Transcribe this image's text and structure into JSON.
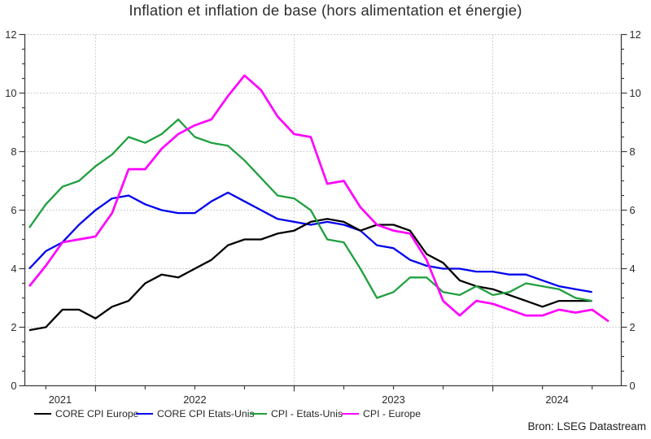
{
  "source_note": "Bron: LSEG Datastream",
  "chart_data": {
    "type": "line",
    "title": "Inflation et inflation de base (hors alimentation et énergie)",
    "legend_position": "bottom",
    "grid": {
      "style": "dotted",
      "horizontal_at": [
        2,
        4,
        6,
        8,
        10,
        12
      ],
      "vertical_at_year_boundaries": true
    },
    "y_axis": {
      "min": 0,
      "max": 12,
      "major_ticks": [
        0,
        2,
        4,
        6,
        8,
        10,
        12
      ],
      "minor_step": 0.5,
      "labels_both_sides": true
    },
    "x_axis": {
      "unit": "month",
      "months": [
        "2021-09",
        "2021-10",
        "2021-11",
        "2021-12",
        "2022-01",
        "2022-02",
        "2022-03",
        "2022-04",
        "2022-05",
        "2022-06",
        "2022-07",
        "2022-08",
        "2022-09",
        "2022-10",
        "2022-11",
        "2022-12",
        "2023-01",
        "2023-02",
        "2023-03",
        "2023-04",
        "2023-05",
        "2023-06",
        "2023-07",
        "2023-08",
        "2023-09",
        "2023-10",
        "2023-11",
        "2023-12",
        "2024-01",
        "2024-02",
        "2024-03",
        "2024-04",
        "2024-05",
        "2024-06",
        "2024-07",
        "2024-08"
      ],
      "year_labels": [
        "2021",
        "2022",
        "2023",
        "2024"
      ],
      "year_boundary_month_index": [
        4,
        16,
        28
      ],
      "quarter_tick_month_index": [
        1,
        4,
        7,
        10,
        13,
        16,
        19,
        22,
        25,
        28,
        31,
        34
      ]
    },
    "series": [
      {
        "name": "CORE CPI Europe",
        "color": "#000000",
        "values": [
          1.9,
          2.0,
          2.6,
          2.6,
          2.3,
          2.7,
          2.9,
          3.5,
          3.8,
          3.7,
          4.0,
          4.3,
          4.8,
          5.0,
          5.0,
          5.2,
          5.3,
          5.6,
          5.7,
          5.6,
          5.3,
          5.5,
          5.5,
          5.3,
          4.5,
          4.2,
          3.6,
          3.4,
          3.3,
          3.1,
          2.9,
          2.7,
          2.9,
          2.9,
          2.9
        ]
      },
      {
        "name": "CORE CPI Etats-Unis",
        "color": "#0000ee",
        "values": [
          4.0,
          4.6,
          4.9,
          5.5,
          6.0,
          6.4,
          6.5,
          6.2,
          6.0,
          5.9,
          5.9,
          6.3,
          6.6,
          6.3,
          6.0,
          5.7,
          5.6,
          5.5,
          5.6,
          5.5,
          5.3,
          4.8,
          4.7,
          4.3,
          4.1,
          4.0,
          4.0,
          3.9,
          3.9,
          3.8,
          3.8,
          3.6,
          3.4,
          3.3,
          3.2
        ]
      },
      {
        "name": "CPI - Etats-Unis",
        "color": "#1fa03f",
        "values": [
          5.4,
          6.2,
          6.8,
          7.0,
          7.5,
          7.9,
          8.5,
          8.3,
          8.6,
          9.1,
          8.5,
          8.3,
          8.2,
          7.7,
          7.1,
          6.5,
          6.4,
          6.0,
          5.0,
          4.9,
          4.0,
          3.0,
          3.2,
          3.7,
          3.7,
          3.2,
          3.1,
          3.4,
          3.1,
          3.2,
          3.5,
          3.4,
          3.3,
          3.0,
          2.9
        ]
      },
      {
        "name": "CPI - Europe",
        "color": "#ff00ff",
        "values": [
          3.4,
          4.1,
          4.9,
          5.0,
          5.1,
          5.9,
          7.4,
          7.4,
          8.1,
          8.6,
          8.9,
          9.1,
          9.9,
          10.6,
          10.1,
          9.2,
          8.6,
          8.5,
          6.9,
          7.0,
          6.1,
          5.5,
          5.3,
          5.2,
          4.3,
          2.9,
          2.4,
          2.9,
          2.8,
          2.6,
          2.4,
          2.4,
          2.6,
          2.5,
          2.6,
          2.2
        ]
      }
    ]
  }
}
